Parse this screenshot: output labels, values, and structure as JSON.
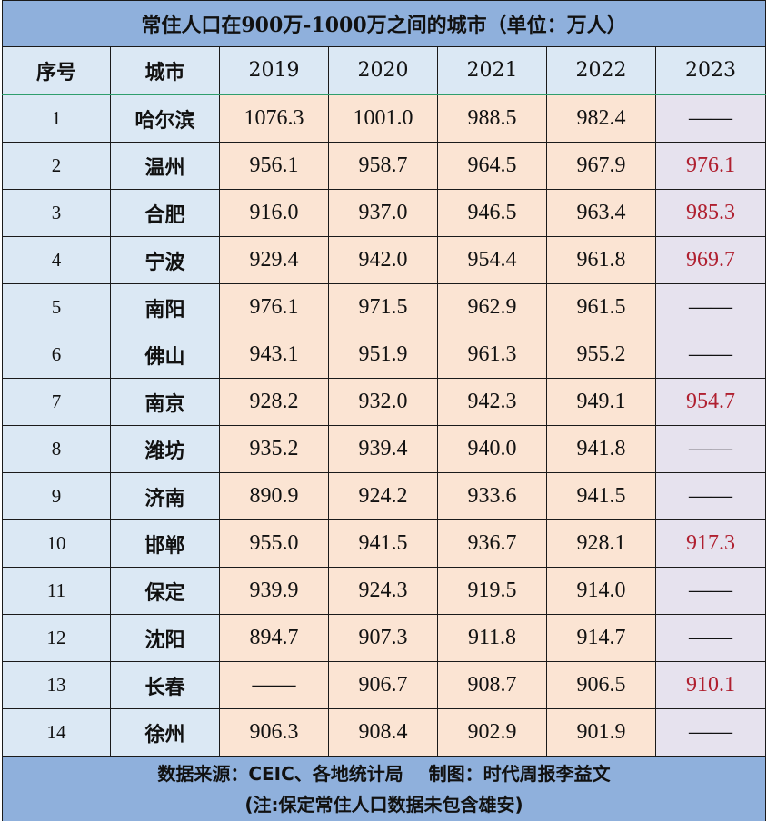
{
  "chart_data": {
    "type": "table",
    "title": "常住人口在900万-1000万之间的城市（单位：万人）",
    "columns": [
      "序号",
      "城市",
      "2019",
      "2020",
      "2021",
      "2022",
      "2023"
    ],
    "rows": [
      {
        "idx": "1",
        "city": "哈尔滨",
        "values": [
          "1076.3",
          "1001.0",
          "988.5",
          "982.4",
          "——"
        ]
      },
      {
        "idx": "2",
        "city": "温州",
        "values": [
          "956.1",
          "958.7",
          "964.5",
          "967.9",
          "976.1"
        ]
      },
      {
        "idx": "3",
        "city": "合肥",
        "values": [
          "916.0",
          "937.0",
          "946.5",
          "963.4",
          "985.3"
        ]
      },
      {
        "idx": "4",
        "city": "宁波",
        "values": [
          "929.4",
          "942.0",
          "954.4",
          "961.8",
          "969.7"
        ]
      },
      {
        "idx": "5",
        "city": "南阳",
        "values": [
          "976.1",
          "971.5",
          "962.9",
          "961.5",
          "——"
        ]
      },
      {
        "idx": "6",
        "city": "佛山",
        "values": [
          "943.1",
          "951.9",
          "961.3",
          "955.2",
          "——"
        ]
      },
      {
        "idx": "7",
        "city": "南京",
        "values": [
          "928.2",
          "932.0",
          "942.3",
          "949.1",
          "954.7"
        ]
      },
      {
        "idx": "8",
        "city": "潍坊",
        "values": [
          "935.2",
          "939.4",
          "940.0",
          "941.8",
          "——"
        ]
      },
      {
        "idx": "9",
        "city": "济南",
        "values": [
          "890.9",
          "924.2",
          "933.6",
          "941.5",
          "——"
        ]
      },
      {
        "idx": "10",
        "city": "邯郸",
        "values": [
          "955.0",
          "941.5",
          "936.7",
          "928.1",
          "917.3"
        ]
      },
      {
        "idx": "11",
        "city": "保定",
        "values": [
          "939.9",
          "924.3",
          "919.5",
          "914.0",
          "——"
        ]
      },
      {
        "idx": "12",
        "city": "沈阳",
        "values": [
          "894.7",
          "907.3",
          "911.8",
          "914.7",
          "——"
        ]
      },
      {
        "idx": "13",
        "city": "长春",
        "values": [
          "——",
          "906.7",
          "908.7",
          "906.5",
          "910.1"
        ]
      },
      {
        "idx": "14",
        "city": "徐州",
        "values": [
          "906.3",
          "908.4",
          "902.9",
          "901.9",
          "——"
        ]
      }
    ],
    "footer": {
      "source": "数据来源：CEIC、各地统计局    制图：时代周报李益文",
      "note": "(注:保定常住人口数据未包含雄安)"
    }
  },
  "colors": {
    "title_bg": "#8fb0dc",
    "label_bg": "#dbe8f4",
    "data_bg": "#fbe4d3",
    "col2023_bg": "#e6e2ee",
    "highlight_text": "#b02030",
    "header_rule": "#2f9e6d"
  }
}
